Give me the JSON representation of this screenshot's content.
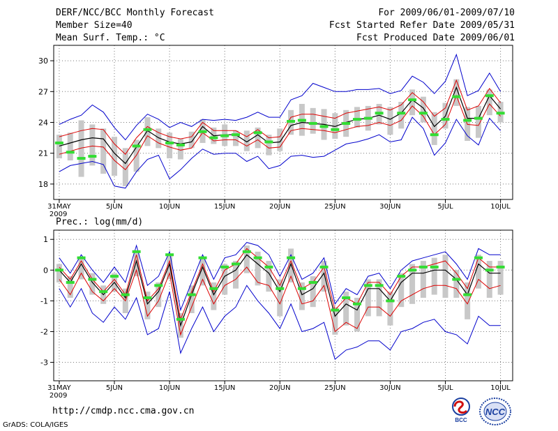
{
  "header": {
    "left": [
      "DERF/NCC/BCC Monthly Forecast",
      "Member Size=40",
      "Mean Surf. Temp.: °C"
    ],
    "right": [
      "For 2009/06/01-2009/07/10",
      "Fcst Started Refer Date 2009/05/31",
      "Fcst Produced Date 2009/06/01"
    ]
  },
  "footer": {
    "url": "http://cmdp.ncc.cma.gov.cn",
    "credit": "GrADS: COLA/IGES",
    "logo_bcc": "BCC",
    "logo_ncc": "NCC"
  },
  "colors": {
    "mean": "#000000",
    "inner_band": "#dd0000",
    "outer_band": "#0000cc",
    "box": "#c8c8c8",
    "obs": "#33dd33",
    "grid": "#777777"
  },
  "chart_data": [
    {
      "type": "line",
      "title": "Mean Surf. Temp.: °C",
      "x_ticks": [
        "31MAY",
        "5JUN",
        "10JUN",
        "15JUN",
        "20JUN",
        "25JUN",
        "30JUN",
        "5JUL",
        "10JUL"
      ],
      "x_year_label": "2009",
      "ylim": [
        16.5,
        31.5
      ],
      "y_ticks": [
        18,
        21,
        24,
        27,
        30
      ],
      "days": 41,
      "series": [
        {
          "name": "mean",
          "values": [
            21.7,
            22,
            22.3,
            22.5,
            22.4,
            21,
            20,
            21.6,
            23.2,
            22.5,
            22.1,
            21.9,
            22.1,
            23.6,
            22.7,
            22.8,
            22.8,
            22.1,
            22.8,
            22,
            22.1,
            23.7,
            24,
            23.9,
            23.8,
            23.6,
            24,
            24.3,
            24.4,
            24.7,
            24.3,
            24.9,
            26.2,
            25.4,
            23.6,
            24.6,
            27.4,
            24.4,
            24.4,
            26.6,
            25.3
          ]
        },
        {
          "name": "upper_red",
          "values": [
            22.6,
            22.9,
            23.2,
            23.4,
            23.3,
            21.9,
            20.9,
            22.5,
            23.6,
            23,
            22.6,
            22.4,
            22.6,
            24,
            23.2,
            23.2,
            23.2,
            22.6,
            23.3,
            22.5,
            22.6,
            24.5,
            24.8,
            24.8,
            24.6,
            24.4,
            24.9,
            25.1,
            25.3,
            25.5,
            25.2,
            25.7,
            26.9,
            26,
            24.6,
            25.4,
            28.1,
            25.2,
            25.6,
            27.3,
            25.9
          ]
        },
        {
          "name": "lower_red",
          "values": [
            20.9,
            21.2,
            21.5,
            21.7,
            21.6,
            20.3,
            19.4,
            20.8,
            22.7,
            22,
            21.6,
            21.3,
            21.5,
            23,
            22.2,
            22.3,
            22.3,
            21.7,
            22.3,
            21.5,
            21.6,
            23.2,
            23.4,
            23.3,
            23.2,
            23,
            23.3,
            23.6,
            23.7,
            24,
            23.7,
            24.2,
            25.6,
            24.6,
            22.8,
            23.8,
            26.6,
            23.8,
            23.7,
            25.8,
            24.6
          ]
        },
        {
          "name": "upper_blue",
          "values": [
            23.8,
            24.3,
            24.7,
            25.7,
            25,
            23.5,
            22.3,
            23.7,
            24.8,
            24.3,
            23.5,
            24,
            23.6,
            24.3,
            24.2,
            24.3,
            24.2,
            24.5,
            25,
            24.5,
            24.5,
            26.2,
            26.6,
            27.8,
            27.4,
            27,
            27,
            27.2,
            27.2,
            27.3,
            26.8,
            27.1,
            28.5,
            27.9,
            26.8,
            28,
            30.6,
            26.6,
            27.1,
            28.8,
            27
          ]
        },
        {
          "name": "lower_blue",
          "values": [
            19.2,
            19.8,
            20,
            20.2,
            19.9,
            17.8,
            17.6,
            19.2,
            20.4,
            20.8,
            18.5,
            19.4,
            20.5,
            21.4,
            20.9,
            21,
            21,
            20.2,
            20.7,
            19.5,
            19.8,
            20.7,
            20.8,
            20.6,
            20.7,
            21.3,
            21.9,
            22.1,
            22.4,
            22.8,
            22.1,
            22.3,
            24.5,
            23.4,
            20.8,
            22,
            24.3,
            22.7,
            21.8,
            24.4,
            23.2
          ]
        },
        {
          "name": "box_top",
          "values": [
            22.8,
            23,
            24.2,
            23.8,
            23.4,
            22.6,
            21.5,
            22.3,
            24.5,
            23.4,
            23,
            22.4,
            23.1,
            24.3,
            23.5,
            23.8,
            23.2,
            23.2,
            23.5,
            22.8,
            23.4,
            25.2,
            25.8,
            25.4,
            25.3,
            24.9,
            25.2,
            25.5,
            25.6,
            25.8,
            25.5,
            26,
            27.2,
            26.5,
            25,
            25.9,
            28.2,
            25.5,
            25.6,
            27.2,
            26
          ]
        },
        {
          "name": "box_bottom",
          "values": [
            20.5,
            20.3,
            18.7,
            19.8,
            19,
            18.8,
            17.8,
            19.2,
            21.7,
            21.5,
            20.5,
            20.4,
            21.5,
            22,
            21.9,
            21.7,
            21.7,
            21.2,
            21.5,
            20.8,
            21.2,
            22.8,
            22.7,
            22.9,
            22.3,
            22.4,
            22.6,
            23.5,
            23.2,
            23.8,
            22.8,
            23.4,
            24.7,
            24,
            21.8,
            23.4,
            25.6,
            22.2,
            22.5,
            24.7,
            24
          ]
        },
        {
          "name": "observed",
          "values": [
            22,
            21.1,
            20.5,
            20.7,
            null,
            null,
            null,
            21.7,
            23.3,
            null,
            22,
            21.8,
            null,
            23.1,
            22.5,
            22.7,
            22.8,
            null,
            23,
            22.1,
            null,
            24.1,
            24.2,
            23.9,
            23.6,
            23.3,
            23.9,
            24.3,
            24.4,
            24.9,
            null,
            24.9,
            26.2,
            24.9,
            22.8,
            24.3,
            26.5,
            24.2,
            24.4,
            26.6,
            24.9
          ]
        }
      ]
    },
    {
      "type": "line",
      "title": "Prec.: log(mm/d)",
      "x_ticks": [
        "31MAY",
        "5JUN",
        "10JUN",
        "15JUN",
        "20JUN",
        "25JUN",
        "30JUN",
        "5JUL",
        "10JUL"
      ],
      "x_year_label": "2009",
      "ylim": [
        -3.6,
        1.3
      ],
      "y_ticks": [
        1,
        0,
        -1,
        -2,
        -3
      ],
      "days": 41,
      "series": [
        {
          "name": "mean",
          "values": [
            0,
            -0.4,
            0.2,
            -0.4,
            -0.8,
            -0.4,
            -0.9,
            0.3,
            -1.1,
            -0.7,
            0.2,
            -1.8,
            -0.8,
            0.1,
            -0.8,
            -0.2,
            0,
            0.5,
            0.2,
            -0.1,
            -0.7,
            0.2,
            -0.8,
            -0.6,
            -0.1,
            -1.5,
            -1.1,
            -1.3,
            -0.6,
            -0.6,
            -1,
            -0.4,
            -0.1,
            -0.1,
            0,
            0,
            -0.3,
            -0.8,
            0.2,
            -0.1,
            -0.1
          ]
        },
        {
          "name": "upper_red",
          "values": [
            0.1,
            -0.3,
            0.3,
            -0.3,
            -0.7,
            -0.3,
            -0.8,
            0.5,
            -1,
            -0.6,
            0.3,
            -1.6,
            -0.7,
            0.2,
            -0.7,
            0,
            0.2,
            0.7,
            0.4,
            0.1,
            -0.5,
            0.3,
            -0.6,
            -0.4,
            0.1,
            -1.3,
            -0.9,
            -1.1,
            -0.4,
            -0.4,
            -0.8,
            -0.2,
            0.1,
            0.1,
            0.2,
            0.3,
            -0.1,
            -0.6,
            0.4,
            0.1,
            0.1
          ]
        },
        {
          "name": "lower_red",
          "values": [
            -0.3,
            -0.8,
            -0.1,
            -0.7,
            -1,
            -0.6,
            -1,
            0,
            -1.5,
            -1,
            -0.1,
            -2.1,
            -1.2,
            -0.3,
            -1.1,
            -0.5,
            -0.3,
            0.1,
            -0.4,
            -0.5,
            -1.1,
            -0.2,
            -1.1,
            -1,
            -0.5,
            -2,
            -1.7,
            -1.9,
            -1.2,
            -1.2,
            -1.5,
            -1,
            -0.8,
            -0.6,
            -0.5,
            -0.5,
            -0.6,
            -1.1,
            -0.3,
            -0.6,
            -0.5
          ]
        },
        {
          "name": "upper_blue",
          "values": [
            0.4,
            -0.1,
            0.5,
            0,
            -0.4,
            0.1,
            -0.4,
            0.8,
            -0.5,
            -0.2,
            0.6,
            -1.3,
            -0.4,
            0.5,
            -0.3,
            0.4,
            0.5,
            0.9,
            0.8,
            0.5,
            -0.2,
            0.5,
            -0.3,
            -0.1,
            0.4,
            -1.1,
            -0.6,
            -0.8,
            -0.2,
            -0.1,
            -0.6,
            0,
            0.3,
            0.4,
            0.5,
            0.6,
            0.2,
            -0.3,
            0.7,
            0.5,
            0.5
          ]
        },
        {
          "name": "lower_blue",
          "values": [
            -0.6,
            -1.2,
            -0.6,
            -1.4,
            -1.7,
            -1.2,
            -1.6,
            -0.9,
            -2.1,
            -1.9,
            -0.7,
            -2.7,
            -1.9,
            -1.2,
            -2,
            -1.5,
            -1.2,
            -0.5,
            -1,
            -1.4,
            -1.9,
            -1.1,
            -2,
            -1.9,
            -1.7,
            -2.9,
            -2.6,
            -2.5,
            -2.3,
            -2.3,
            -2.6,
            -2,
            -1.9,
            -1.7,
            -1.6,
            -2,
            -2.1,
            -2.4,
            -1.5,
            -1.8,
            -1.8
          ]
        },
        {
          "name": "box_top",
          "values": [
            0.2,
            -0.2,
            0.4,
            -0.1,
            -0.5,
            -0.1,
            -0.6,
            0.6,
            -0.7,
            -0.4,
            0.5,
            -1.4,
            -0.5,
            0.4,
            -0.4,
            0.2,
            0.3,
            0.8,
            0.6,
            0.3,
            -0.3,
            0.7,
            -0.4,
            -0.2,
            0.3,
            -1.2,
            -0.7,
            -0.9,
            -0.3,
            -0.3,
            -0.7,
            -0.1,
            0.2,
            0.3,
            0.4,
            0.5,
            0,
            -0.4,
            0.5,
            0.3,
            0.3
          ]
        },
        {
          "name": "box_bottom",
          "values": [
            -0.4,
            -0.9,
            -0.3,
            -0.8,
            -1.1,
            -0.7,
            -1.4,
            -0.2,
            -1.6,
            -1.2,
            -0.3,
            -2.2,
            -1.4,
            -0.5,
            -1.3,
            -0.8,
            -0.6,
            -0.1,
            -0.5,
            -0.7,
            -1.5,
            -0.4,
            -1.3,
            -1.2,
            -0.7,
            -2.1,
            -1.8,
            -2,
            -1.5,
            -1.5,
            -1.8,
            -1.2,
            -1.1,
            -0.9,
            -0.8,
            -0.9,
            -0.9,
            -1.6,
            -0.6,
            -0.9,
            -0.8
          ]
        },
        {
          "name": "observed",
          "values": [
            0,
            -0.4,
            0.4,
            -0.3,
            -0.7,
            -0.2,
            -0.8,
            0.6,
            -0.9,
            -0.5,
            0.5,
            -1.6,
            -0.8,
            0.4,
            -0.6,
            0.1,
            0.2,
            0.6,
            0.4,
            0.1,
            -0.6,
            0.4,
            -0.6,
            -0.4,
            0.1,
            -1.3,
            -0.9,
            -1.1,
            -0.5,
            -0.5,
            -1,
            -0.2,
            0,
            0.1,
            0.1,
            null,
            -0.3,
            -0.8,
            0.4,
            0,
            0.1
          ]
        }
      ]
    }
  ]
}
